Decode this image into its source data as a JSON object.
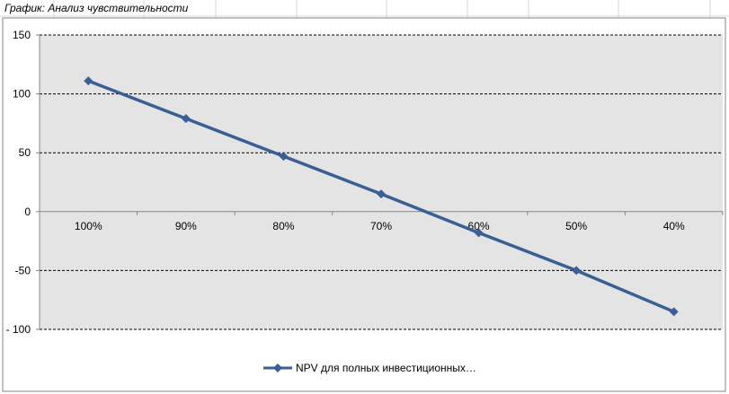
{
  "sheet_title": "График: Анализ чувствительности",
  "chart_data": {
    "type": "line",
    "categories": [
      "100%",
      "90%",
      "80%",
      "70%",
      "60%",
      "50%",
      "40%"
    ],
    "series": [
      {
        "name": "NPV для полных инвестиционных…",
        "values": [
          111,
          79,
          47,
          15,
          -18,
          -50,
          -85
        ]
      }
    ],
    "ylim": [
      -100,
      150
    ],
    "yticks": [
      -100,
      -50,
      0,
      50,
      100,
      150
    ],
    "ytick_labels": [
      "- 100",
      "-50",
      "0",
      "50",
      "100",
      "150"
    ],
    "grid": "dashed horizontal major gridlines",
    "legend_position": "bottom",
    "colors": {
      "series": "#3A5F95",
      "plot_background": "#E4E4E4",
      "gridline": "#000000",
      "sheet_grid": "#D0D7E5",
      "axis": "#868686"
    }
  }
}
